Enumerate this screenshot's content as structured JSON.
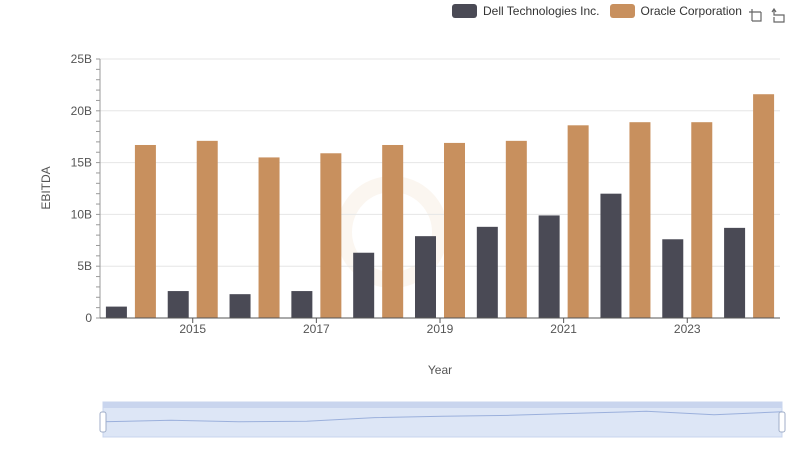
{
  "legend": {
    "items": [
      {
        "label": "Dell Technologies Inc.",
        "color": "#4a4a55"
      },
      {
        "label": "Oracle Corporation",
        "color": "#c8905e"
      }
    ]
  },
  "toolbar": {
    "icons": [
      "zoom-select-icon",
      "zoom-reset-icon"
    ]
  },
  "chart_data": {
    "type": "bar",
    "xlabel": "Year",
    "ylabel": "EBITDA",
    "ylim": [
      0,
      25000000000
    ],
    "yticks": [
      "0",
      "5B",
      "10B",
      "15B",
      "20B",
      "25B"
    ],
    "xticks": [
      "2015",
      "2017",
      "2019",
      "2021",
      "2023"
    ],
    "categories": [
      "2014",
      "2015",
      "2016",
      "2017",
      "2018",
      "2019",
      "2020",
      "2021",
      "2022",
      "2023",
      "2024"
    ],
    "series": [
      {
        "name": "Dell Technologies Inc.",
        "color": "#4a4a55",
        "values": [
          1100000000,
          2600000000,
          2300000000,
          2600000000,
          6300000000,
          7900000000,
          8800000000,
          9900000000,
          12000000000,
          7600000000,
          8700000000
        ]
      },
      {
        "name": "Oracle Corporation",
        "color": "#c8905e",
        "values": [
          16700000000,
          17100000000,
          15500000000,
          15900000000,
          16700000000,
          16900000000,
          17100000000,
          18600000000,
          18900000000,
          18900000000,
          21600000000
        ]
      }
    ],
    "grid": true,
    "legend_position": "top-right",
    "has_zoom_slider": true
  }
}
